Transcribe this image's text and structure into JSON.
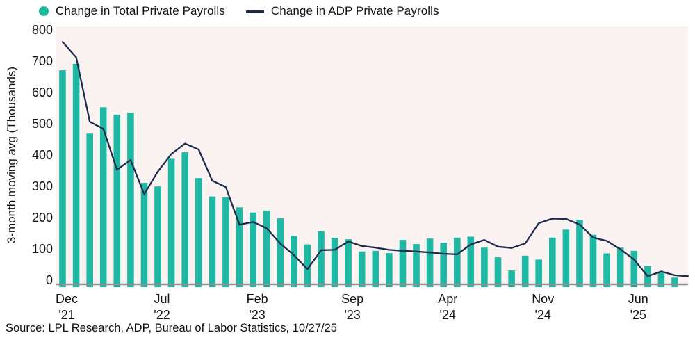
{
  "chart_data": {
    "type": "combo",
    "title": "",
    "ylabel": "3-month moving avg (Thousands)",
    "ylim": [
      0,
      800
    ],
    "y_tick_step": 100,
    "y_ticks": [
      0,
      100,
      200,
      300,
      400,
      500,
      600,
      700,
      800
    ],
    "grid": false,
    "legend_position": "top",
    "plot_background": "#FAF3F1",
    "categories": [
      "Dec '21",
      "Jan '22",
      "Feb '22",
      "Mar '22",
      "Apr '22",
      "May '22",
      "Jun '22",
      "Jul '22",
      "Aug '22",
      "Sep '22",
      "Oct '22",
      "Nov '22",
      "Dec '22",
      "Jan '23",
      "Feb '23",
      "Mar '23",
      "Apr '23",
      "May '23",
      "Jun '23",
      "Jul '23",
      "Aug '23",
      "Sep '23",
      "Oct '23",
      "Nov '23",
      "Dec '23",
      "Jan '24",
      "Feb '24",
      "Mar '24",
      "Apr '24",
      "May '24",
      "Jun '24",
      "Jul '24",
      "Aug '24",
      "Sep '24",
      "Oct '24",
      "Nov '24",
      "Dec '24",
      "Jan '25",
      "Feb '25",
      "Mar '25",
      "Apr '25",
      "May '25",
      "Jun '25",
      "Jul '25",
      "Aug '25",
      "Sep '25"
    ],
    "x_axis_ticks": [
      {
        "month": "Dec",
        "year": "'21",
        "index": 0
      },
      {
        "month": "Jul",
        "year": "'22",
        "index": 7
      },
      {
        "month": "Feb",
        "year": "'23",
        "index": 14
      },
      {
        "month": "Sep",
        "year": "'23",
        "index": 21
      },
      {
        "month": "Apr",
        "year": "'24",
        "index": 28
      },
      {
        "month": "Nov",
        "year": "'24",
        "index": 35
      },
      {
        "month": "Jun",
        "year": "'25",
        "index": 42
      }
    ],
    "series": [
      {
        "name": "Change in Total Private Payrolls",
        "type": "bar",
        "color": "#1EB8A4",
        "values": [
          665,
          685,
          468,
          550,
          527,
          533,
          315,
          304,
          390,
          410,
          330,
          273,
          270,
          239,
          223,
          229,
          205,
          150,
          124,
          165,
          144,
          140,
          102,
          104,
          97,
          138,
          125,
          142,
          129,
          145,
          148,
          114,
          84,
          43,
          89,
          77,
          145,
          170,
          200,
          154,
          96,
          114,
          104,
          57,
          39,
          21
        ]
      },
      {
        "name": "Change in ADP Private Payrolls",
        "type": "line",
        "color": "#1C2B4C",
        "values": [
          753,
          705,
          505,
          483,
          356,
          386,
          280,
          350,
          405,
          437,
          419,
          322,
          302,
          185,
          194,
          174,
          127,
          91,
          47,
          106,
          107,
          133,
          119,
          114,
          107,
          104,
          102,
          99,
          95,
          93,
          124,
          138,
          117,
          113,
          127,
          190,
          204,
          203,
          186,
          145,
          135,
          109,
          77,
          25,
          40,
          28
        ],
        "right_edge_extension_value": 25
      }
    ]
  },
  "source": {
    "text": "Source: LPL Research, ADP, Bureau of Labor Statistics, 10/27/25"
  },
  "colors": {
    "page_background": "#FFFFFF",
    "plot_background": "#FAF3F1",
    "axis_line": "#909090",
    "text": "#141414",
    "bar": "#1EB8A4",
    "line": "#1C2B4C"
  }
}
